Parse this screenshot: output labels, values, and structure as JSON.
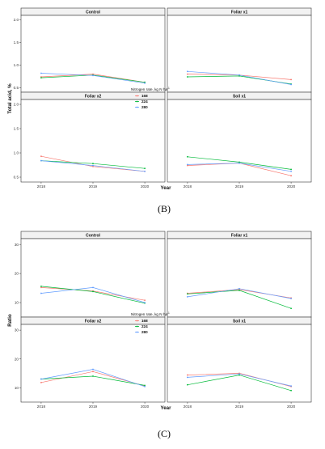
{
  "colors": {
    "168": "#f8766d",
    "224": "#00ba38",
    "280": "#619cff"
  },
  "chart_data": [
    {
      "id": "B",
      "type": "line",
      "figure_label": "(B)",
      "ylabel": "Total acid, %",
      "xlabel": "Year",
      "x": [
        "2018",
        "2019",
        "2020"
      ],
      "ylim": [
        0.4,
        2.1
      ],
      "yticks": [
        "0.5",
        "1.0",
        "1.5",
        "2.0"
      ],
      "ytick_values": [
        0.5,
        1.0,
        1.5,
        2.0
      ],
      "legend": {
        "title": "Nitrogen rate, kg N  ha",
        "sup": "-1",
        "entries": [
          "168",
          "224",
          "280"
        ]
      },
      "panels": [
        {
          "title": "Control",
          "series": [
            {
              "name": "168",
              "values": [
                0.74,
                0.8,
                0.62
              ]
            },
            {
              "name": "224",
              "values": [
                0.72,
                0.78,
                0.62
              ]
            },
            {
              "name": "280",
              "values": [
                0.82,
                0.77,
                0.6
              ]
            }
          ]
        },
        {
          "title": "Foliar x1",
          "series": [
            {
              "name": "168",
              "values": [
                0.8,
                0.78,
                0.68
              ]
            },
            {
              "name": "224",
              "values": [
                0.74,
                0.76,
                0.58
              ]
            },
            {
              "name": "280",
              "values": [
                0.86,
                0.78,
                0.57
              ]
            }
          ]
        },
        {
          "title": "Foliar x2",
          "series": [
            {
              "name": "168",
              "values": [
                0.93,
                0.72,
                0.62
              ]
            },
            {
              "name": "224",
              "values": [
                0.84,
                0.78,
                0.68
              ]
            },
            {
              "name": "280",
              "values": [
                0.84,
                0.74,
                0.62
              ]
            }
          ]
        },
        {
          "title": "Soil x1",
          "series": [
            {
              "name": "168",
              "values": [
                0.74,
                0.79,
                0.53
              ]
            },
            {
              "name": "224",
              "values": [
                0.92,
                0.81,
                0.66
              ]
            },
            {
              "name": "280",
              "values": [
                0.76,
                0.79,
                0.62
              ]
            }
          ]
        }
      ]
    },
    {
      "id": "C",
      "type": "line",
      "figure_label": "(C)",
      "ylabel": "Ratio",
      "xlabel": "Year",
      "x": [
        "2018",
        "2019",
        "2020"
      ],
      "ylim": [
        5,
        32
      ],
      "yticks": [
        "10",
        "20",
        "30"
      ],
      "ytick_values": [
        10,
        20,
        30
      ],
      "legend": {
        "title": "Nitrogen rate, kg N  ha",
        "sup": "-1",
        "entries": [
          "168",
          "224",
          "280"
        ]
      },
      "panels": [
        {
          "title": "Control",
          "series": [
            {
              "name": "168",
              "values": [
                15.2,
                14.0,
                10.8
              ]
            },
            {
              "name": "224",
              "values": [
                15.6,
                13.8,
                9.8
              ]
            },
            {
              "name": "280",
              "values": [
                13.2,
                15.2,
                10.0
              ]
            }
          ]
        },
        {
          "title": "Foliar x1",
          "series": [
            {
              "name": "168",
              "values": [
                13.2,
                14.5,
                11.6
              ]
            },
            {
              "name": "224",
              "values": [
                13.0,
                14.2,
                8.0
              ]
            },
            {
              "name": "280",
              "values": [
                12.0,
                14.8,
                11.4
              ]
            }
          ]
        },
        {
          "title": "Foliar x2",
          "series": [
            {
              "name": "168",
              "values": [
                11.8,
                15.6,
                10.6
              ]
            },
            {
              "name": "224",
              "values": [
                13.0,
                14.0,
                10.8
              ]
            },
            {
              "name": "280",
              "values": [
                13.0,
                16.4,
                10.4
              ]
            }
          ]
        },
        {
          "title": "Soil x1",
          "series": [
            {
              "name": "168",
              "values": [
                14.4,
                15.0,
                10.4
              ]
            },
            {
              "name": "224",
              "values": [
                11.0,
                14.4,
                9.0
              ]
            },
            {
              "name": "280",
              "values": [
                13.6,
                14.8,
                10.6
              ]
            }
          ]
        }
      ]
    }
  ]
}
